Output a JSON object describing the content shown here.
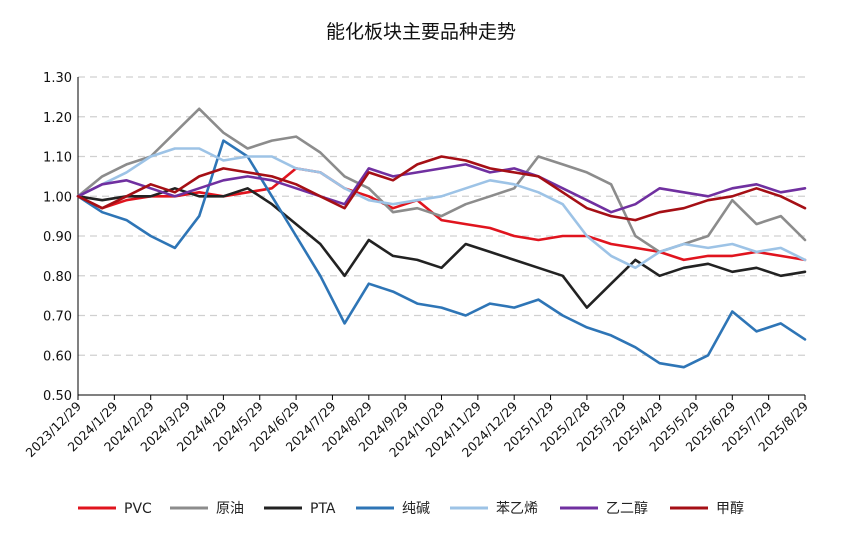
{
  "chart_data": {
    "type": "line",
    "title": "能化板块主要品种走势",
    "xlabel": "",
    "ylabel": "",
    "ylim": [
      0.5,
      1.3
    ],
    "yticks": [
      "0.50",
      "0.60",
      "0.70",
      "0.80",
      "0.90",
      "1.00",
      "1.10",
      "1.20",
      "1.30"
    ],
    "xticks": [
      "2023/12/29",
      "2024/1/29",
      "2024/2/29",
      "2024/3/29",
      "2024/4/29",
      "2024/5/29",
      "2024/6/29",
      "2024/7/29",
      "2024/8/29",
      "2024/9/29",
      "2024/10/29",
      "2024/11/29",
      "2024/12/29",
      "2025/1/29",
      "2025/2/28",
      "2025/3/29",
      "2025/4/29",
      "2025/5/29",
      "2025/6/29",
      "2025/7/29",
      "2025/8/29"
    ],
    "grid": "horizontal-dashed",
    "legend_position": "bottom",
    "series": [
      {
        "name": "PVC",
        "color": "#e0141e",
        "values": [
          1.0,
          0.97,
          0.99,
          1.0,
          1.0,
          1.01,
          1.0,
          1.01,
          1.02,
          1.07,
          1.06,
          1.02,
          1.0,
          0.97,
          0.99,
          0.94,
          0.93,
          0.92,
          0.9,
          0.89,
          0.9,
          0.9,
          0.88,
          0.87,
          0.86,
          0.84,
          0.85,
          0.85,
          0.86,
          0.85,
          0.84
        ]
      },
      {
        "name": "原油",
        "color": "#8c8c8c",
        "values": [
          1.0,
          1.05,
          1.08,
          1.1,
          1.16,
          1.22,
          1.16,
          1.12,
          1.14,
          1.15,
          1.11,
          1.05,
          1.02,
          0.96,
          0.97,
          0.95,
          0.98,
          1.0,
          1.02,
          1.1,
          1.08,
          1.06,
          1.03,
          0.9,
          0.86,
          0.88,
          0.9,
          0.99,
          0.93,
          0.95,
          0.89
        ]
      },
      {
        "name": "PTA",
        "color": "#222222",
        "values": [
          1.0,
          0.99,
          1.0,
          1.0,
          1.02,
          1.0,
          1.0,
          1.02,
          0.98,
          0.93,
          0.88,
          0.8,
          0.89,
          0.85,
          0.84,
          0.82,
          0.88,
          0.86,
          0.84,
          0.82,
          0.8,
          0.72,
          0.78,
          0.84,
          0.8,
          0.82,
          0.83,
          0.81,
          0.82,
          0.8,
          0.81
        ]
      },
      {
        "name": "纯碱",
        "color": "#2e75b6",
        "values": [
          1.0,
          0.96,
          0.94,
          0.9,
          0.87,
          0.95,
          1.14,
          1.1,
          1.0,
          0.9,
          0.8,
          0.68,
          0.78,
          0.76,
          0.73,
          0.72,
          0.7,
          0.73,
          0.72,
          0.74,
          0.7,
          0.67,
          0.65,
          0.62,
          0.58,
          0.57,
          0.6,
          0.71,
          0.66,
          0.68,
          0.64
        ]
      },
      {
        "name": "苯乙烯",
        "color": "#9dc3e6",
        "values": [
          1.0,
          1.03,
          1.06,
          1.1,
          1.12,
          1.12,
          1.09,
          1.1,
          1.1,
          1.07,
          1.06,
          1.02,
          0.99,
          0.98,
          0.99,
          1.0,
          1.02,
          1.04,
          1.03,
          1.01,
          0.98,
          0.9,
          0.85,
          0.82,
          0.86,
          0.88,
          0.87,
          0.88,
          0.86,
          0.87,
          0.84
        ]
      },
      {
        "name": "乙二醇",
        "color": "#7030a0",
        "values": [
          1.0,
          1.03,
          1.04,
          1.02,
          1.0,
          1.02,
          1.04,
          1.05,
          1.04,
          1.02,
          1.0,
          0.98,
          1.07,
          1.05,
          1.06,
          1.07,
          1.08,
          1.06,
          1.07,
          1.05,
          1.02,
          0.99,
          0.96,
          0.98,
          1.02,
          1.01,
          1.0,
          1.02,
          1.03,
          1.01,
          1.02
        ]
      },
      {
        "name": "甲醇",
        "color": "#a50f15",
        "values": [
          1.0,
          0.97,
          1.0,
          1.03,
          1.01,
          1.05,
          1.07,
          1.06,
          1.05,
          1.03,
          1.0,
          0.97,
          1.06,
          1.04,
          1.08,
          1.1,
          1.09,
          1.07,
          1.06,
          1.05,
          1.01,
          0.97,
          0.95,
          0.94,
          0.96,
          0.97,
          0.99,
          1.0,
          1.02,
          1.0,
          0.97
        ]
      }
    ]
  }
}
